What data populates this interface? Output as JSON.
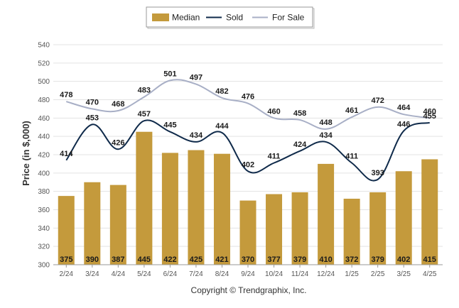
{
  "chart_data": {
    "type": "bar",
    "title": "",
    "xlabel": "",
    "ylabel": "Price (in $,000)",
    "ylim": [
      300,
      540
    ],
    "yticks": [
      300,
      320,
      340,
      360,
      380,
      400,
      420,
      440,
      460,
      480,
      500,
      520,
      540
    ],
    "grid": true,
    "legend_position": "top-center",
    "categories": [
      "2/24",
      "3/24",
      "4/24",
      "5/24",
      "6/24",
      "7/24",
      "8/24",
      "9/24",
      "10/24",
      "11/24",
      "12/24",
      "1/25",
      "2/25",
      "3/25",
      "4/25"
    ],
    "series": [
      {
        "name": "Median",
        "type": "bar",
        "color": "#c49a3c",
        "values": [
          375,
          390,
          387,
          445,
          422,
          425,
          421,
          370,
          377,
          379,
          410,
          372,
          379,
          402,
          415
        ]
      },
      {
        "name": "Sold",
        "type": "line",
        "color": "#0f2a4a",
        "values": [
          414,
          453,
          426,
          457,
          445,
          434,
          444,
          402,
          411,
          424,
          434,
          411,
          393,
          446,
          455
        ]
      },
      {
        "name": "For Sale",
        "type": "line",
        "color": "#a8afc6",
        "values": [
          478,
          470,
          468,
          483,
          501,
          497,
          482,
          476,
          460,
          458,
          448,
          461,
          472,
          464,
          460
        ]
      }
    ],
    "credit": "Copyright © Trendgraphix, Inc."
  }
}
